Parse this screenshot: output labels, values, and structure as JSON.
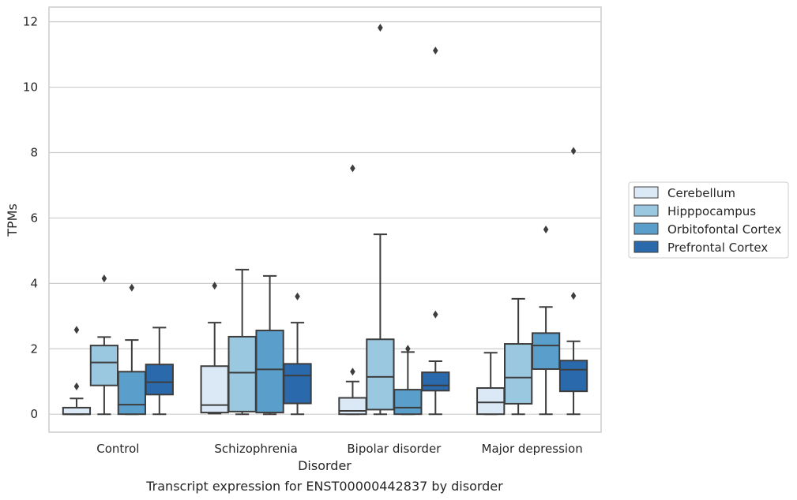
{
  "chart_data": {
    "type": "box",
    "caption": "Transcript expression for ENST00000442837 by disorder",
    "xlabel": "Disorder",
    "ylabel": "TPMs",
    "ylim": [
      -0.55,
      12.45
    ],
    "yticks": [
      0,
      2,
      4,
      6,
      8,
      10,
      12
    ],
    "grid": "horizontal",
    "legend_position": "right",
    "categories": [
      "Control",
      "Schizophrenia",
      "Bipolar disorder",
      "Major depression"
    ],
    "series": [
      {
        "name": "Cerebellum",
        "color": "#dbe9f6",
        "boxes": [
          {
            "whisker_low": 0,
            "q1": 0,
            "median": 0,
            "q3": 0.2,
            "whisker_high": 0.48,
            "outliers": [
              0.85,
              2.58
            ]
          },
          {
            "whisker_low": 0.02,
            "q1": 0.05,
            "median": 0.28,
            "q3": 1.47,
            "whisker_high": 2.8,
            "outliers": [
              3.93
            ]
          },
          {
            "whisker_low": 0,
            "q1": 0,
            "median": 0.1,
            "q3": 0.5,
            "whisker_high": 1.0,
            "outliers": [
              1.3,
              7.52
            ]
          },
          {
            "whisker_low": 0,
            "q1": 0,
            "median": 0.36,
            "q3": 0.8,
            "whisker_high": 1.88,
            "outliers": []
          }
        ]
      },
      {
        "name": "Hipppocampus",
        "color": "#9ac8e0",
        "boxes": [
          {
            "whisker_low": 0,
            "q1": 0.88,
            "median": 1.58,
            "q3": 2.1,
            "whisker_high": 2.36,
            "outliers": [
              4.15
            ]
          },
          {
            "whisker_low": 0,
            "q1": 0.08,
            "median": 1.27,
            "q3": 2.37,
            "whisker_high": 4.42,
            "outliers": []
          },
          {
            "whisker_low": 0,
            "q1": 0.14,
            "median": 1.14,
            "q3": 2.29,
            "whisker_high": 5.5,
            "outliers": [
              11.82
            ]
          },
          {
            "whisker_low": 0,
            "q1": 0.32,
            "median": 1.12,
            "q3": 2.15,
            "whisker_high": 3.53,
            "outliers": []
          }
        ]
      },
      {
        "name": "Orbitofontal Cortex",
        "color": "#5a9fcc",
        "boxes": [
          {
            "whisker_low": 0,
            "q1": 0,
            "median": 0.29,
            "q3": 1.3,
            "whisker_high": 2.27,
            "outliers": [
              3.87
            ]
          },
          {
            "whisker_low": 0,
            "q1": 0.05,
            "median": 1.37,
            "q3": 2.56,
            "whisker_high": 4.23,
            "outliers": []
          },
          {
            "whisker_low": 0,
            "q1": 0,
            "median": 0.2,
            "q3": 0.75,
            "whisker_high": 1.9,
            "outliers": [
              2.0
            ]
          },
          {
            "whisker_low": 0,
            "q1": 1.38,
            "median": 2.1,
            "q3": 2.48,
            "whisker_high": 3.28,
            "outliers": [
              5.65
            ]
          }
        ]
      },
      {
        "name": "Prefrontal Cortex",
        "color": "#2a6aac",
        "boxes": [
          {
            "whisker_low": 0,
            "q1": 0.6,
            "median": 0.98,
            "q3": 1.52,
            "whisker_high": 2.65,
            "outliers": []
          },
          {
            "whisker_low": 0,
            "q1": 0.33,
            "median": 1.18,
            "q3": 1.54,
            "whisker_high": 2.8,
            "outliers": [
              3.6
            ]
          },
          {
            "whisker_low": 0,
            "q1": 0.72,
            "median": 0.88,
            "q3": 1.28,
            "whisker_high": 1.62,
            "outliers": [
              3.05,
              11.12
            ]
          },
          {
            "whisker_low": 0,
            "q1": 0.7,
            "median": 1.36,
            "q3": 1.64,
            "whisker_high": 2.23,
            "outliers": [
              3.62,
              8.05
            ]
          }
        ]
      }
    ]
  }
}
